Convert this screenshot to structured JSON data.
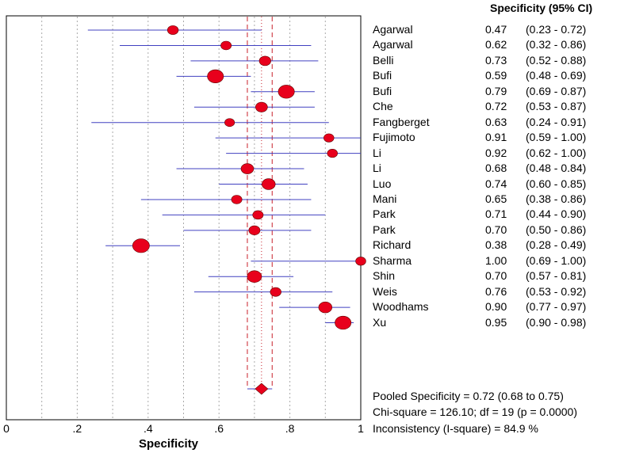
{
  "chart_data": {
    "type": "forest",
    "header": "Specificity (95% CI)",
    "xlabel": "Specificity",
    "xlim": [
      0,
      1
    ],
    "x_ticks": [
      {
        "value": 0,
        "label": "0"
      },
      {
        "value": 0.2,
        "label": ".2"
      },
      {
        "value": 0.4,
        "label": ".4"
      },
      {
        "value": 0.6,
        "label": ".6"
      },
      {
        "value": 0.8,
        "label": ".8"
      },
      {
        "value": 1,
        "label": "1"
      }
    ],
    "grid": true,
    "studies": [
      {
        "name": "Agarwal",
        "value": 0.47,
        "lower": 0.23,
        "upper": 0.72,
        "spec_text": "0.47",
        "ci_text": "(0.23 - 0.72)",
        "weight": 1.3
      },
      {
        "name": "Agarwal",
        "value": 0.62,
        "lower": 0.32,
        "upper": 0.86,
        "spec_text": "0.62",
        "ci_text": "(0.32 - 0.86)",
        "weight": 1.2
      },
      {
        "name": "Belli",
        "value": 0.73,
        "lower": 0.52,
        "upper": 0.88,
        "spec_text": "0.73",
        "ci_text": "(0.52 - 0.88)",
        "weight": 1.5
      },
      {
        "name": "Bufi",
        "value": 0.59,
        "lower": 0.48,
        "upper": 0.69,
        "spec_text": "0.59",
        "ci_text": "(0.48 - 0.69)",
        "weight": 2.8
      },
      {
        "name": "Bufi",
        "value": 0.79,
        "lower": 0.69,
        "upper": 0.87,
        "spec_text": "0.79",
        "ci_text": "(0.69 - 0.87)",
        "weight": 2.8
      },
      {
        "name": "Che",
        "value": 0.72,
        "lower": 0.53,
        "upper": 0.87,
        "spec_text": "0.72",
        "ci_text": "(0.53 - 0.87)",
        "weight": 1.6
      },
      {
        "name": "Fangberget",
        "value": 0.63,
        "lower": 0.24,
        "upper": 0.91,
        "spec_text": "0.63",
        "ci_text": "(0.24 - 0.91)",
        "weight": 1.0
      },
      {
        "name": "Fujimoto",
        "value": 0.91,
        "lower": 0.59,
        "upper": 1.0,
        "spec_text": "0.91",
        "ci_text": "(0.59 - 1.00)",
        "weight": 1.1
      },
      {
        "name": "Li",
        "value": 0.92,
        "lower": 0.62,
        "upper": 1.0,
        "spec_text": "0.92",
        "ci_text": "(0.62 - 1.00)",
        "weight": 1.1
      },
      {
        "name": "Li",
        "value": 0.68,
        "lower": 0.48,
        "upper": 0.84,
        "spec_text": "0.68",
        "ci_text": "(0.48 - 0.84)",
        "weight": 1.8
      },
      {
        "name": "Luo",
        "value": 0.74,
        "lower": 0.6,
        "upper": 0.85,
        "spec_text": "0.74",
        "ci_text": "(0.60 - 0.85)",
        "weight": 2.0
      },
      {
        "name": "Mani",
        "value": 0.65,
        "lower": 0.38,
        "upper": 0.86,
        "spec_text": "0.65",
        "ci_text": "(0.38 - 0.86)",
        "weight": 1.2
      },
      {
        "name": "Park",
        "value": 0.71,
        "lower": 0.44,
        "upper": 0.9,
        "spec_text": "0.71",
        "ci_text": "(0.44 - 0.90)",
        "weight": 1.2
      },
      {
        "name": "Park",
        "value": 0.7,
        "lower": 0.5,
        "upper": 0.86,
        "spec_text": "0.70",
        "ci_text": "(0.50 - 0.86)",
        "weight": 1.4
      },
      {
        "name": "Richard",
        "value": 0.38,
        "lower": 0.28,
        "upper": 0.49,
        "spec_text": "0.38",
        "ci_text": "(0.28 - 0.49)",
        "weight": 3.0
      },
      {
        "name": "Sharma",
        "value": 1.0,
        "lower": 0.69,
        "upper": 1.0,
        "spec_text": "1.00",
        "ci_text": "(0.69 - 1.00)",
        "weight": 1.1
      },
      {
        "name": "Shin",
        "value": 0.7,
        "lower": 0.57,
        "upper": 0.81,
        "spec_text": "0.70",
        "ci_text": "(0.57 - 0.81)",
        "weight": 2.3
      },
      {
        "name": "Weis",
        "value": 0.76,
        "lower": 0.53,
        "upper": 0.92,
        "spec_text": "0.76",
        "ci_text": "(0.53 - 0.92)",
        "weight": 1.3
      },
      {
        "name": "Woodhams",
        "value": 0.9,
        "lower": 0.77,
        "upper": 0.97,
        "spec_text": "0.90",
        "ci_text": "(0.77 - 0.97)",
        "weight": 2.0
      },
      {
        "name": "Xu",
        "value": 0.95,
        "lower": 0.9,
        "upper": 0.98,
        "spec_text": "0.95",
        "ci_text": "(0.90 - 0.98)",
        "weight": 2.8
      }
    ],
    "pooled": {
      "value": 0.72,
      "lower": 0.68,
      "upper": 0.75
    },
    "summary_lines": [
      "Pooled Specificity = 0.72 (0.68 to 0.75)",
      "Chi-square = 126.10; df =  19 (p = 0.0000)",
      "Inconsistency (I-square) = 84.9 %"
    ],
    "colors": {
      "marker": "#e8001c",
      "ci_line": "#4040c0",
      "pooled_line": "#c8202a",
      "grid": "#aaaaaa"
    }
  }
}
